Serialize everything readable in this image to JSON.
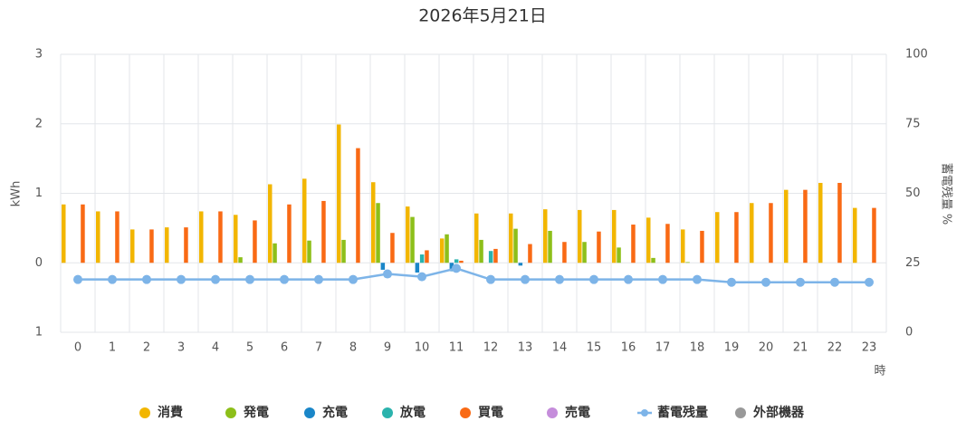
{
  "chart_data": {
    "type": "bar",
    "title": "2026年5月21日",
    "y_label": "kWh",
    "y2_label": "蓄電残量 %",
    "x_label": "時",
    "categories": [
      "0",
      "1",
      "2",
      "3",
      "4",
      "5",
      "6",
      "7",
      "8",
      "9",
      "10",
      "11",
      "12",
      "13",
      "14",
      "15",
      "16",
      "17",
      "18",
      "19",
      "20",
      "21",
      "22",
      "23"
    ],
    "ylim": [
      -1,
      3
    ],
    "yticks": [
      {
        "value": -1,
        "label": "1"
      },
      0,
      1,
      2,
      3
    ],
    "y2lim": [
      0,
      100
    ],
    "y2ticks": [
      0,
      25,
      50,
      75,
      100
    ],
    "grid": true,
    "series": [
      {
        "name": "消費",
        "color": "#f2b600",
        "values": [
          0.84,
          0.74,
          0.48,
          0.51,
          0.74,
          0.69,
          1.13,
          1.21,
          1.99,
          1.16,
          0.81,
          0.35,
          0.71,
          0.71,
          0.77,
          0.76,
          0.76,
          0.65,
          0.48,
          0.73,
          0.86,
          1.05,
          1.15,
          0.79
        ]
      },
      {
        "name": "発電",
        "color": "#8dbf1a",
        "values": [
          0,
          0,
          0,
          0,
          0,
          0.08,
          0.28,
          0.32,
          0.33,
          0.86,
          0.66,
          0.41,
          0.33,
          0.49,
          0.46,
          0.3,
          0.22,
          0.07,
          0.01,
          0,
          0,
          0,
          0,
          0
        ]
      },
      {
        "name": "充電",
        "color": "#1a86c8",
        "values": [
          0,
          0,
          0,
          0,
          0,
          0,
          0,
          0,
          0,
          -0.1,
          -0.14,
          -0.12,
          0,
          -0.04,
          0,
          0,
          0,
          0,
          0,
          0,
          0,
          0,
          0,
          0
        ]
      },
      {
        "name": "放電",
        "color": "#2bb3ad",
        "values": [
          0,
          0,
          0,
          0,
          0,
          0,
          0,
          0,
          0,
          0,
          0.12,
          0.05,
          0.17,
          0,
          0,
          0,
          0,
          0,
          0,
          0,
          0,
          0,
          0,
          0
        ]
      },
      {
        "name": "買電",
        "color": "#f96a15",
        "values": [
          0.84,
          0.74,
          0.48,
          0.51,
          0.74,
          0.61,
          0.84,
          0.89,
          1.65,
          0.43,
          0.18,
          0.03,
          0.2,
          0.27,
          0.3,
          0.45,
          0.55,
          0.56,
          0.46,
          0.73,
          0.86,
          1.05,
          1.15,
          0.79
        ]
      },
      {
        "name": "売電",
        "color": "#c58ddb",
        "values": [
          0,
          0,
          0,
          0,
          0,
          0,
          0,
          0,
          0,
          0,
          0,
          0,
          0,
          0,
          0,
          0,
          0,
          0,
          0,
          0,
          0,
          0,
          0,
          0
        ]
      },
      {
        "name": "蓄電残量",
        "color": "#7db4e8",
        "type": "line",
        "axis": "y2",
        "values": [
          19,
          19,
          19,
          19,
          19,
          19,
          19,
          19,
          19,
          21,
          20,
          23,
          19,
          19,
          19,
          19,
          19,
          19,
          19,
          18,
          18,
          18,
          18,
          18
        ]
      },
      {
        "name": "外部機器",
        "color": "#999999",
        "values": [
          0,
          0,
          0,
          0,
          0,
          0,
          0,
          0,
          0,
          0,
          0,
          0,
          0,
          0,
          0,
          0,
          0,
          0,
          0,
          0,
          0,
          0,
          0,
          0
        ]
      }
    ]
  }
}
